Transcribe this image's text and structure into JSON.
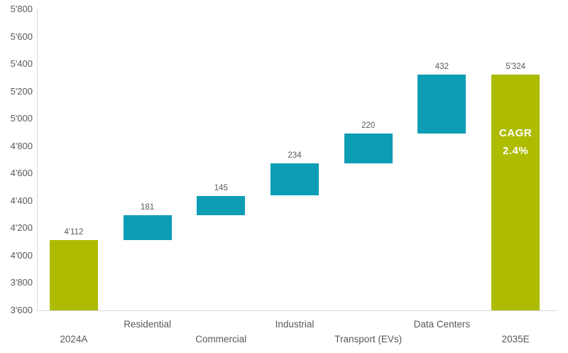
{
  "chart_data": {
    "type": "waterfall",
    "title": "",
    "xlabel": "",
    "ylabel": "",
    "grid": false,
    "legend": null,
    "y_axis": {
      "min": 3600,
      "max": 5800,
      "step": 200,
      "tick_labels": [
        "5'800",
        "5'600",
        "5'400",
        "5'200",
        "5'000",
        "4'800",
        "4'600",
        "4'400",
        "4'200",
        "4'000",
        "3'800",
        "3'600"
      ]
    },
    "categories": [
      "2024A",
      "Residential",
      "Commercial",
      "Industrial",
      "Transport (EVs)",
      "Data Centers",
      "2035E"
    ],
    "bars": [
      {
        "category": "2024A",
        "role": "total",
        "start": 3600,
        "end": 4112,
        "value": 4112,
        "value_label": "4'112"
      },
      {
        "category": "Residential",
        "role": "delta",
        "start": 4112,
        "end": 4293,
        "value": 181,
        "value_label": "181"
      },
      {
        "category": "Commercial",
        "role": "delta",
        "start": 4293,
        "end": 4438,
        "value": 145,
        "value_label": "145"
      },
      {
        "category": "Industrial",
        "role": "delta",
        "start": 4438,
        "end": 4672,
        "value": 234,
        "value_label": "234"
      },
      {
        "category": "Transport (EVs)",
        "role": "delta",
        "start": 4672,
        "end": 4892,
        "value": 220,
        "value_label": "220"
      },
      {
        "category": "Data Centers",
        "role": "delta",
        "start": 4892,
        "end": 5324,
        "value": 432,
        "value_label": "432"
      },
      {
        "category": "2035E",
        "role": "total",
        "start": 3600,
        "end": 5324,
        "value": 5324,
        "value_label": "5'324",
        "inner_label": {
          "line1": "CAGR",
          "line2": "2.4%"
        }
      }
    ],
    "colors": {
      "total_bar": "#adbc00",
      "delta_bar": "#0d9db5",
      "axis_line": "#d9d9d9",
      "label_text": "#595959",
      "inner_text": "#ffffff"
    }
  }
}
